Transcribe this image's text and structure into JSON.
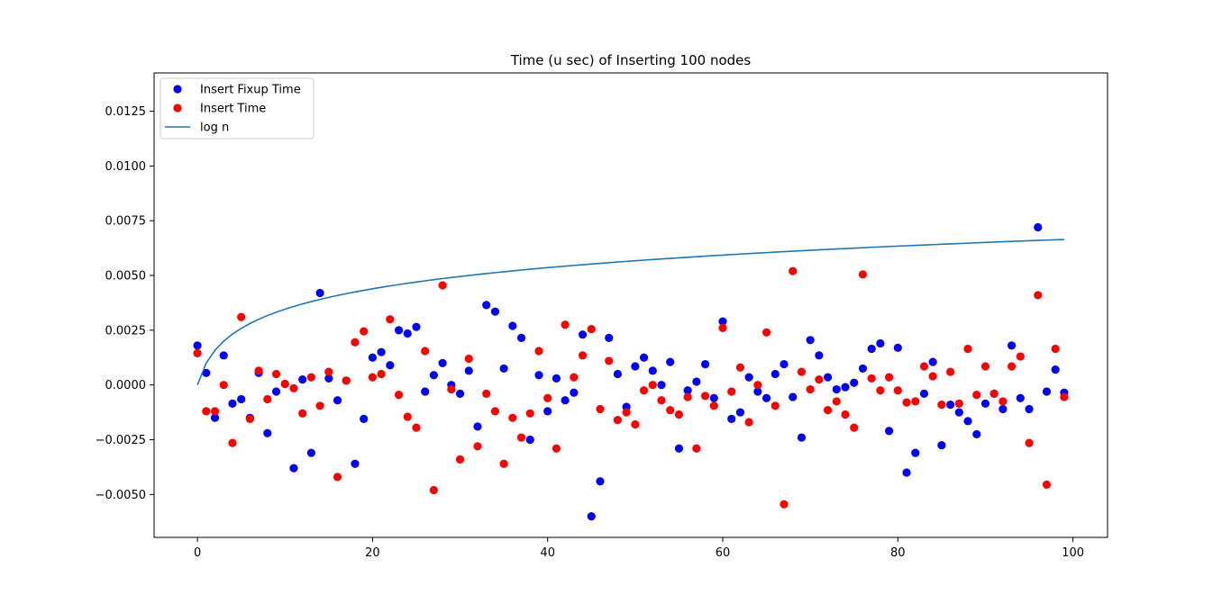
{
  "chart_data": {
    "type": "scatter",
    "title": "Time (u sec) of Inserting 100 nodes",
    "xlabel": "",
    "ylabel": "",
    "xlim": [
      -4.95,
      103.95
    ],
    "ylim": [
      -0.00696,
      0.01425
    ],
    "xticks": [
      0,
      20,
      40,
      60,
      80,
      100
    ],
    "xtick_labels": [
      "0",
      "20",
      "40",
      "60",
      "80",
      "100"
    ],
    "yticks": [
      -0.005,
      -0.0025,
      0.0,
      0.0025,
      0.005,
      0.0075,
      0.01,
      0.0125
    ],
    "ytick_labels": [
      "−0.0050",
      "−0.0025",
      "0.0000",
      "0.0025",
      "0.0050",
      "0.0075",
      "0.0100",
      "0.0125"
    ],
    "grid": false,
    "legend_position": "upper left",
    "series": [
      {
        "name": "Insert Fixup Time",
        "kind": "scatter",
        "color": "#0000ff",
        "x": [
          0,
          1,
          2,
          3,
          4,
          5,
          6,
          7,
          8,
          9,
          10,
          11,
          12,
          13,
          14,
          15,
          16,
          17,
          18,
          19,
          20,
          21,
          22,
          23,
          24,
          25,
          26,
          27,
          28,
          29,
          30,
          31,
          32,
          33,
          34,
          35,
          36,
          37,
          38,
          39,
          40,
          41,
          42,
          43,
          44,
          45,
          46,
          47,
          48,
          49,
          50,
          51,
          52,
          53,
          54,
          55,
          56,
          57,
          58,
          59,
          60,
          61,
          62,
          63,
          64,
          65,
          66,
          67,
          68,
          69,
          70,
          71,
          72,
          73,
          74,
          75,
          76,
          77,
          78,
          79,
          80,
          81,
          82,
          83,
          84,
          85,
          86,
          87,
          88,
          89,
          90,
          91,
          92,
          93,
          94,
          95,
          96,
          97,
          98,
          99
        ],
        "y": [
          0.0018,
          0.00055,
          -0.0015,
          0.00135,
          -0.00085,
          -0.00065,
          -0.0015,
          0.00055,
          -0.0022,
          -0.0003,
          5e-05,
          -0.0038,
          0.00025,
          -0.0031,
          0.0042,
          0.0003,
          -0.0007,
          0.0002,
          -0.0036,
          -0.00155,
          0.00125,
          0.0015,
          0.0009,
          0.0025,
          0.00235,
          0.00265,
          -0.0003,
          0.00045,
          0.001,
          0.0,
          -0.0004,
          0.00065,
          -0.0019,
          0.00365,
          0.00335,
          0.00075,
          0.0027,
          0.00215,
          -0.0025,
          0.00045,
          -0.0012,
          0.0003,
          -0.0007,
          -0.00035,
          0.0023,
          -0.006,
          -0.0044,
          0.00215,
          0.0005,
          -0.001,
          0.00085,
          0.00125,
          0.00065,
          0.0,
          0.00105,
          -0.0029,
          -0.00025,
          0.00015,
          0.00095,
          -0.0006,
          0.0029,
          -0.00155,
          -0.00125,
          0.00035,
          -0.0003,
          -0.0006,
          0.0005,
          0.00095,
          -0.00055,
          -0.0024,
          0.00205,
          0.00135,
          0.00035,
          -0.0002,
          -0.0001,
          0.0001,
          0.00075,
          0.00165,
          0.0019,
          -0.0021,
          0.0017,
          -0.004,
          -0.0031,
          -0.0004,
          0.00105,
          -0.00275,
          -0.0009,
          -0.00125,
          -0.00165,
          -0.00225,
          -0.00085,
          -0.0004,
          -0.0011,
          0.0018,
          -0.0006,
          -0.0011,
          0.0072,
          -0.0003,
          0.0007,
          -0.00035
        ]
      },
      {
        "name": "Insert Time",
        "kind": "scatter",
        "color": "#ff0000",
        "x": [
          0,
          1,
          2,
          3,
          4,
          5,
          6,
          7,
          8,
          9,
          10,
          11,
          12,
          13,
          14,
          15,
          16,
          17,
          18,
          19,
          20,
          21,
          22,
          23,
          24,
          25,
          26,
          27,
          28,
          29,
          30,
          31,
          32,
          33,
          34,
          35,
          36,
          37,
          38,
          39,
          40,
          41,
          42,
          43,
          44,
          45,
          46,
          47,
          48,
          49,
          50,
          51,
          52,
          53,
          54,
          55,
          56,
          57,
          58,
          59,
          60,
          61,
          62,
          63,
          64,
          65,
          66,
          67,
          68,
          69,
          70,
          71,
          72,
          73,
          74,
          75,
          76,
          77,
          78,
          79,
          80,
          81,
          82,
          83,
          84,
          85,
          86,
          87,
          88,
          89,
          90,
          91,
          92,
          93,
          94,
          95,
          96,
          97,
          98,
          99
        ],
        "y": [
          0.00145,
          -0.0012,
          -0.0012,
          0.0,
          -0.00265,
          0.0031,
          -0.00155,
          0.00065,
          -0.00065,
          0.0005,
          5e-05,
          -0.00015,
          -0.0013,
          0.00035,
          -0.00095,
          0.0006,
          -0.0042,
          0.0002,
          0.00195,
          0.00245,
          0.00035,
          0.0005,
          0.003,
          -0.00045,
          -0.00145,
          -0.00195,
          0.00155,
          -0.0048,
          0.00455,
          -0.0002,
          -0.0034,
          0.0012,
          -0.0028,
          -0.0004,
          -0.0012,
          -0.0036,
          -0.0015,
          -0.0024,
          -0.0013,
          0.00155,
          -0.0006,
          -0.0029,
          0.00275,
          0.00035,
          0.00135,
          0.00255,
          -0.0011,
          0.0011,
          -0.0016,
          -0.00125,
          -0.0018,
          -0.00025,
          0.0,
          -0.0007,
          -0.00115,
          -0.00135,
          -0.00055,
          -0.0029,
          -0.0005,
          -0.00095,
          0.0026,
          -0.0003,
          0.0008,
          -0.0017,
          0.0,
          0.0024,
          -0.00095,
          -0.00545,
          0.0052,
          0.0006,
          -0.0002,
          0.00025,
          -0.00115,
          -0.00075,
          -0.00135,
          -0.00195,
          0.00505,
          0.0003,
          -0.00025,
          0.00035,
          -0.00025,
          -0.0008,
          -0.00075,
          0.00085,
          0.0004,
          -0.0009,
          0.0006,
          -0.00085,
          0.00165,
          -0.00045,
          0.00085,
          -0.0004,
          -0.00075,
          0.00085,
          0.0013,
          -0.00265,
          0.0041,
          -0.00455,
          0.00165,
          -0.00055
        ]
      },
      {
        "name": "log n",
        "kind": "line",
        "color": "#1f77b4",
        "x_from": 0,
        "x_to": 99,
        "formula": "0.001 * log2(n + 1)"
      }
    ]
  }
}
